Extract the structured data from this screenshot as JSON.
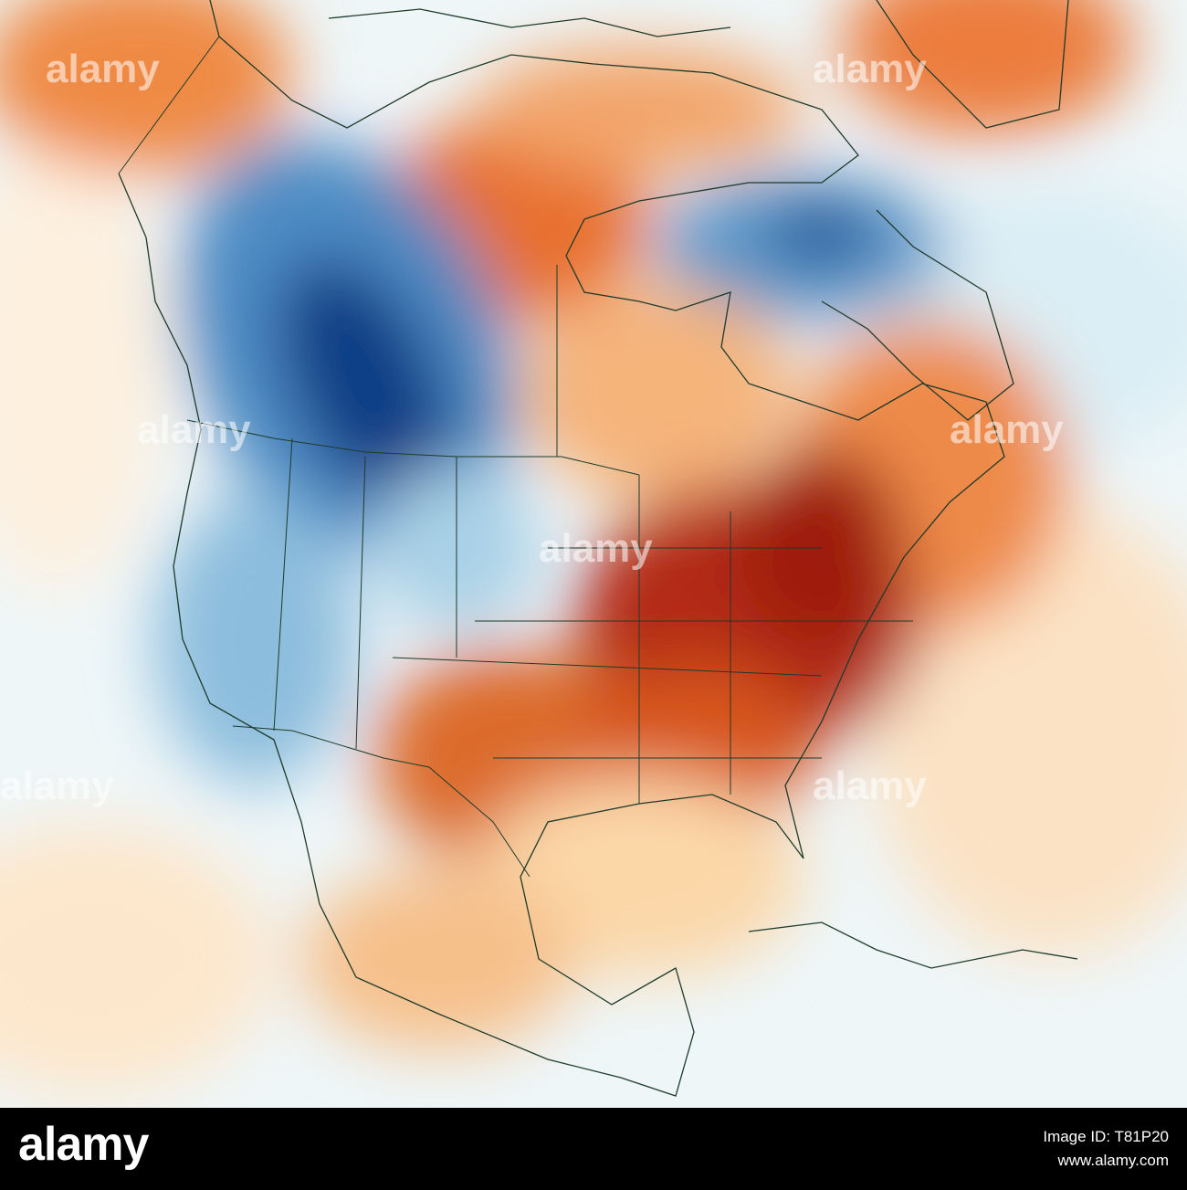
{
  "watermark": "alamy",
  "footer": {
    "logo": "alamy",
    "image_id": "Image ID: T81P20",
    "url": "www.alamy.com"
  }
}
